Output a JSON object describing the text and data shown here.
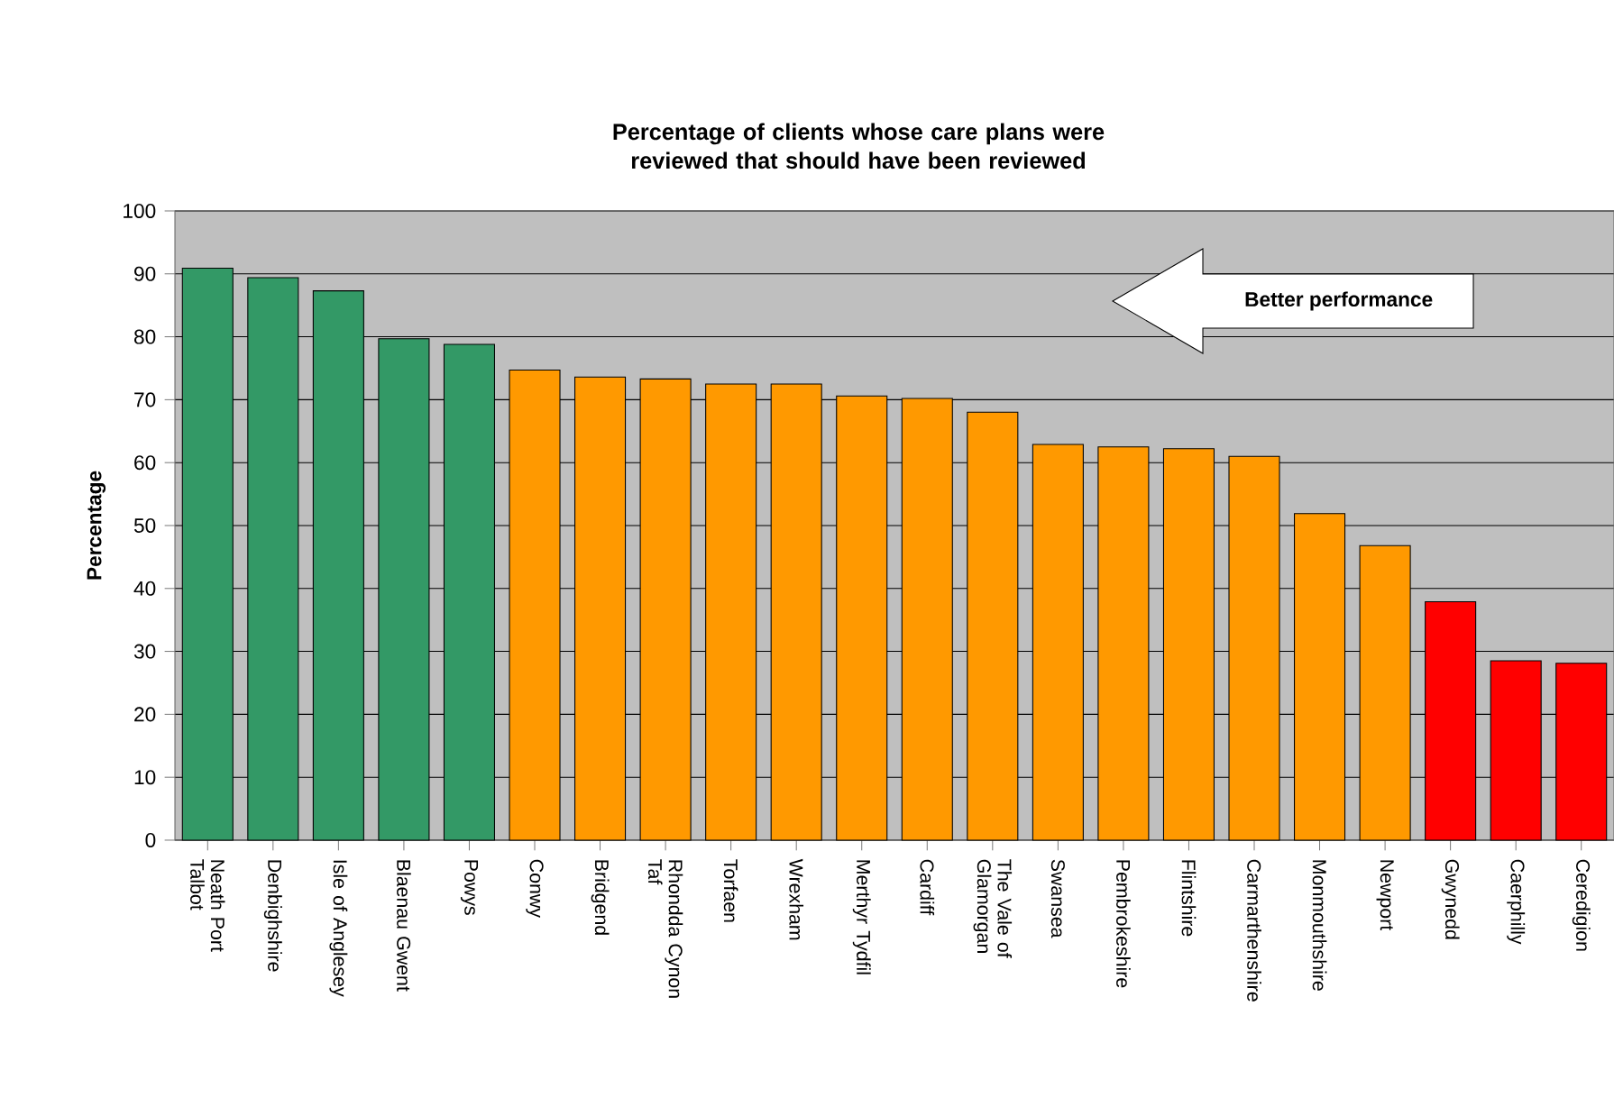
{
  "chart_data": {
    "type": "bar",
    "title": "Percentage of clients whose care plans were reviewed that should have been reviewed",
    "ylabel": "Percentage",
    "categories": [
      "Neath Port Talbot",
      "Denbighshire",
      "Isle of Anglesey",
      "Blaenau Gwent",
      "Powys",
      "Conwy",
      "Bridgend",
      "Rhondda Cynon Taf",
      "Torfaen",
      "Wrexham",
      "Merthyr Tydfil",
      "Cardiff",
      "The Vale of Glamorgan",
      "Swansea",
      "Pembrokeshire",
      "Flintshire",
      "Carmarthenshire",
      "Monmouthshire",
      "Newport",
      "Gwynedd",
      "Caerphilly",
      "Ceredigion"
    ],
    "values": [
      90.9,
      89.4,
      87.3,
      79.7,
      78.8,
      74.7,
      73.6,
      73.3,
      72.5,
      72.5,
      70.6,
      70.2,
      68.0,
      62.9,
      62.5,
      62.2,
      61.0,
      51.9,
      46.8,
      37.9,
      28.5,
      28.1
    ],
    "colors": [
      "#339966",
      "#339966",
      "#339966",
      "#339966",
      "#339966",
      "#ff9900",
      "#ff9900",
      "#ff9900",
      "#ff9900",
      "#ff9900",
      "#ff9900",
      "#ff9900",
      "#ff9900",
      "#ff9900",
      "#ff9900",
      "#ff9900",
      "#ff9900",
      "#ff9900",
      "#ff9900",
      "#ff0000",
      "#ff0000",
      "#ff0000"
    ],
    "ylim": [
      0,
      100
    ],
    "yticks": [
      0,
      10,
      20,
      30,
      40,
      50,
      60,
      70,
      80,
      90,
      100
    ],
    "grid": "y",
    "annotations": [
      "Better performance"
    ]
  }
}
